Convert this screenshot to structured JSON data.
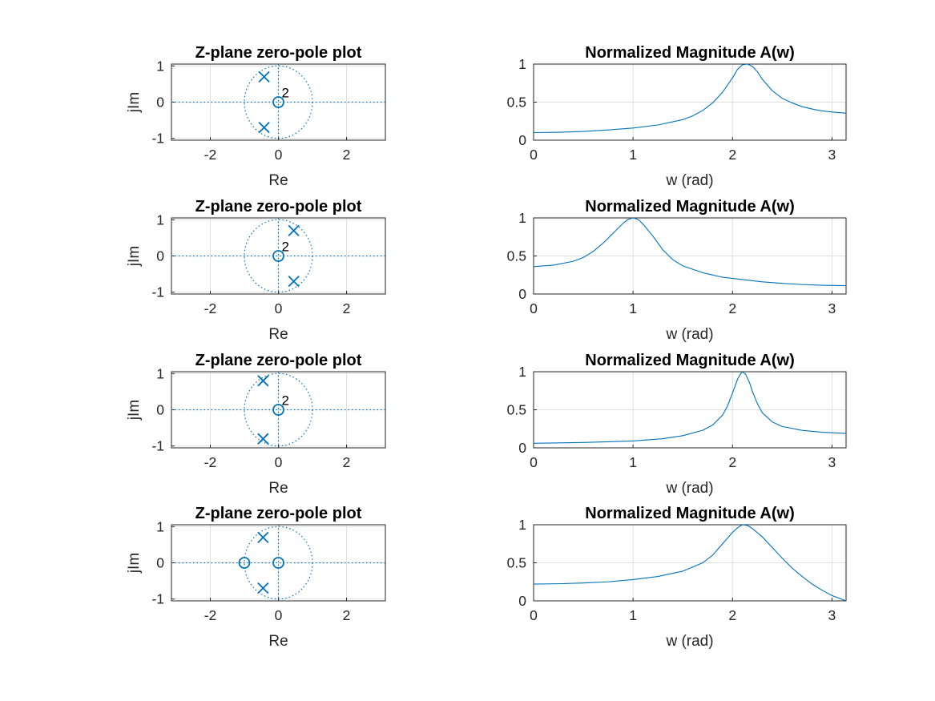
{
  "colors": {
    "series": "#0072bd",
    "axis": "#262626",
    "grid": "#dfdfdf",
    "background": "#ffffff"
  },
  "chart_data": [
    {
      "type": "scatter",
      "title": "Z-plane zero-pole plot",
      "xlabel": "Re",
      "ylabel": "jIm",
      "xlim": [
        -3.14,
        3.14
      ],
      "ylim": [
        -1.05,
        1.05
      ],
      "xticks": [
        -2,
        0,
        2
      ],
      "xtick_labels": [
        "-2",
        "0",
        "2"
      ],
      "yticks": [
        -1,
        0,
        1
      ],
      "ytick_labels": [
        "-1",
        "0",
        "1"
      ],
      "grid": true,
      "unit_circle": true,
      "zeros": [
        {
          "x": 0,
          "y": 0,
          "multiplicity_label": "2"
        }
      ],
      "poles": [
        {
          "x": -0.42,
          "y": 0.7
        },
        {
          "x": -0.42,
          "y": -0.7
        }
      ]
    },
    {
      "type": "line",
      "title": "Normalized Magnitude A(w)",
      "xlabel": "w (rad)",
      "ylabel": "",
      "xlim": [
        0,
        3.1416
      ],
      "ylim": [
        0,
        1
      ],
      "xticks": [
        0,
        1,
        2,
        3
      ],
      "xtick_labels": [
        "0",
        "1",
        "2",
        "3"
      ],
      "yticks": [
        0,
        0.5,
        1
      ],
      "ytick_labels": [
        "0",
        "0.5",
        "1"
      ],
      "grid": true,
      "x": [
        0,
        0.25,
        0.5,
        0.75,
        1.0,
        1.25,
        1.5,
        1.6,
        1.7,
        1.8,
        1.9,
        2.0,
        2.05,
        2.1,
        2.15,
        2.2,
        2.25,
        2.3,
        2.4,
        2.5,
        2.6,
        2.7,
        2.8,
        2.9,
        3.0,
        3.1416
      ],
      "y": [
        0.1,
        0.105,
        0.115,
        0.135,
        0.16,
        0.2,
        0.27,
        0.32,
        0.39,
        0.49,
        0.63,
        0.82,
        0.93,
        0.99,
        1.0,
        0.97,
        0.9,
        0.8,
        0.65,
        0.55,
        0.49,
        0.44,
        0.41,
        0.385,
        0.37,
        0.355
      ]
    },
    {
      "type": "scatter",
      "title": "Z-plane zero-pole plot",
      "xlabel": "Re",
      "ylabel": "jIm",
      "xlim": [
        -3.14,
        3.14
      ],
      "ylim": [
        -1.05,
        1.05
      ],
      "xticks": [
        -2,
        0,
        2
      ],
      "xtick_labels": [
        "-2",
        "0",
        "2"
      ],
      "yticks": [
        -1,
        0,
        1
      ],
      "ytick_labels": [
        "-1",
        "0",
        "1"
      ],
      "grid": true,
      "unit_circle": true,
      "zeros": [
        {
          "x": 0,
          "y": 0,
          "multiplicity_label": "2"
        }
      ],
      "poles": [
        {
          "x": 0.45,
          "y": 0.7
        },
        {
          "x": 0.45,
          "y": -0.7
        }
      ]
    },
    {
      "type": "line",
      "title": "Normalized Magnitude A(w)",
      "xlabel": "w (rad)",
      "ylabel": "",
      "xlim": [
        0,
        3.1416
      ],
      "ylim": [
        0,
        1
      ],
      "xticks": [
        0,
        1,
        2,
        3
      ],
      "xtick_labels": [
        "0",
        "1",
        "2",
        "3"
      ],
      "yticks": [
        0,
        0.5,
        1
      ],
      "ytick_labels": [
        "0",
        "0.5",
        "1"
      ],
      "grid": true,
      "x": [
        0,
        0.2,
        0.4,
        0.5,
        0.6,
        0.7,
        0.8,
        0.9,
        0.95,
        1.0,
        1.05,
        1.1,
        1.2,
        1.3,
        1.4,
        1.5,
        1.7,
        1.9,
        2.1,
        2.3,
        2.5,
        2.7,
        2.9,
        3.1416
      ],
      "y": [
        0.36,
        0.38,
        0.43,
        0.48,
        0.56,
        0.67,
        0.8,
        0.93,
        0.98,
        1.0,
        0.98,
        0.92,
        0.76,
        0.58,
        0.45,
        0.37,
        0.28,
        0.22,
        0.19,
        0.16,
        0.14,
        0.125,
        0.115,
        0.11
      ]
    },
    {
      "type": "scatter",
      "title": "Z-plane zero-pole plot",
      "xlabel": "Re",
      "ylabel": "jIm",
      "xlim": [
        -3.14,
        3.14
      ],
      "ylim": [
        -1.05,
        1.05
      ],
      "xticks": [
        -2,
        0,
        2
      ],
      "xtick_labels": [
        "-2",
        "0",
        "2"
      ],
      "yticks": [
        -1,
        0,
        1
      ],
      "ytick_labels": [
        "-1",
        "0",
        "1"
      ],
      "grid": true,
      "unit_circle": true,
      "zeros": [
        {
          "x": 0,
          "y": 0,
          "multiplicity_label": "2"
        }
      ],
      "poles": [
        {
          "x": -0.45,
          "y": 0.8
        },
        {
          "x": -0.45,
          "y": -0.8
        }
      ]
    },
    {
      "type": "line",
      "title": "Normalized Magnitude A(w)",
      "xlabel": "w (rad)",
      "ylabel": "",
      "xlim": [
        0,
        3.1416
      ],
      "ylim": [
        0,
        1
      ],
      "xticks": [
        0,
        1,
        2,
        3
      ],
      "xtick_labels": [
        "0",
        "1",
        "2",
        "3"
      ],
      "yticks": [
        0,
        0.5,
        1
      ],
      "ytick_labels": [
        "0",
        "0.5",
        "1"
      ],
      "grid": true,
      "x": [
        0,
        0.5,
        1.0,
        1.3,
        1.5,
        1.7,
        1.8,
        1.9,
        1.95,
        2.0,
        2.05,
        2.08,
        2.1,
        2.13,
        2.17,
        2.2,
        2.25,
        2.3,
        2.4,
        2.5,
        2.7,
        2.9,
        3.1416
      ],
      "y": [
        0.06,
        0.07,
        0.09,
        0.12,
        0.16,
        0.23,
        0.3,
        0.43,
        0.55,
        0.72,
        0.9,
        0.97,
        1.0,
        0.97,
        0.86,
        0.74,
        0.58,
        0.46,
        0.34,
        0.28,
        0.23,
        0.205,
        0.19
      ]
    },
    {
      "type": "scatter",
      "title": "Z-plane zero-pole plot",
      "xlabel": "Re",
      "ylabel": "jIm",
      "xlim": [
        -3.14,
        3.14
      ],
      "ylim": [
        -1.05,
        1.05
      ],
      "xticks": [
        -2,
        0,
        2
      ],
      "xtick_labels": [
        "-2",
        "0",
        "2"
      ],
      "yticks": [
        -1,
        0,
        1
      ],
      "ytick_labels": [
        "-1",
        "0",
        "1"
      ],
      "grid": true,
      "unit_circle": true,
      "zeros": [
        {
          "x": -1,
          "y": 0
        },
        {
          "x": 0,
          "y": 0
        }
      ],
      "poles": [
        {
          "x": -0.45,
          "y": 0.7
        },
        {
          "x": -0.45,
          "y": -0.7
        }
      ]
    },
    {
      "type": "line",
      "title": "Normalized Magnitude A(w)",
      "xlabel": "w (rad)",
      "ylabel": "",
      "xlim": [
        0,
        3.1416
      ],
      "ylim": [
        0,
        1
      ],
      "xticks": [
        0,
        1,
        2,
        3
      ],
      "xtick_labels": [
        "0",
        "1",
        "2",
        "3"
      ],
      "yticks": [
        0,
        0.5,
        1
      ],
      "ytick_labels": [
        "0",
        "0.5",
        "1"
      ],
      "grid": true,
      "x": [
        0,
        0.25,
        0.5,
        0.75,
        1.0,
        1.25,
        1.5,
        1.7,
        1.8,
        1.9,
        2.0,
        2.05,
        2.1,
        2.15,
        2.2,
        2.3,
        2.4,
        2.5,
        2.6,
        2.7,
        2.8,
        2.9,
        3.0,
        3.1416
      ],
      "y": [
        0.22,
        0.225,
        0.235,
        0.25,
        0.28,
        0.32,
        0.39,
        0.5,
        0.6,
        0.75,
        0.9,
        0.96,
        1.0,
        0.99,
        0.95,
        0.84,
        0.7,
        0.56,
        0.43,
        0.32,
        0.22,
        0.14,
        0.07,
        0.0
      ]
    }
  ]
}
